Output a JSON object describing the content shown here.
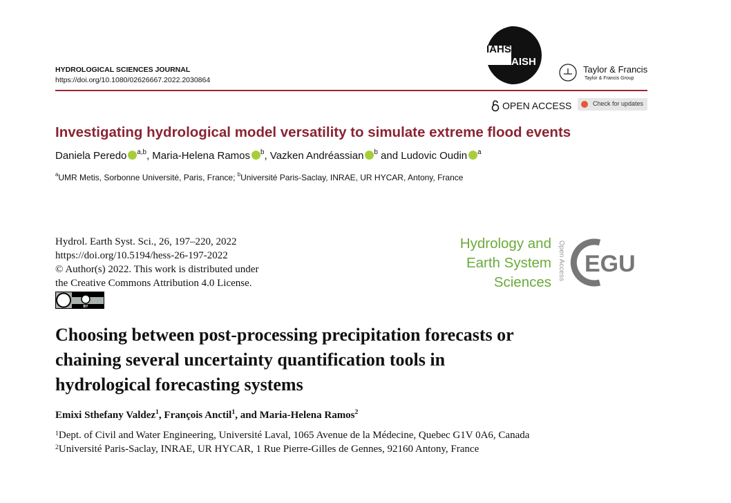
{
  "paper1": {
    "journal": "HYDROLOGICAL SCIENCES JOURNAL",
    "doi": "https://doi.org/10.1080/02626667.2022.2030864",
    "logo_iahs": [
      "IAHS",
      "AISH"
    ],
    "publisher": "Taylor & Francis",
    "publisher_group": "Taylor & Francis Group",
    "open_access": "OPEN ACCESS",
    "check_updates": "Check for updates",
    "title": "Investigating hydrological model versatility to simulate extreme flood events",
    "authors": [
      {
        "text": "Daniela Peredo",
        "sup": "a,b"
      },
      {
        "text": ", Maria-Helena Ramos",
        "sup": "b"
      },
      {
        "text": ", Vazken Andréassian",
        "sup": "b"
      },
      {
        "text": " and Ludovic Oudin",
        "sup": "a"
      }
    ],
    "affiliations": [
      {
        "sup": "a",
        "text": "UMR Metis, Sorbonne Université, Paris, France; "
      },
      {
        "sup": "b",
        "text": "Université Paris-Saclay, INRAE, UR HYCAR, Antony, France"
      }
    ]
  },
  "paper2": {
    "citation": [
      "Hydrol. Earth Syst. Sci., 26, 197–220, 2022",
      "https://doi.org/10.5194/hess-26-197-2022",
      "© Author(s) 2022. This work is distributed under",
      "the Creative Commons Attribution 4.0 License."
    ],
    "license_badge": "BY",
    "journal_name": [
      "Hydrology and",
      "Earth System",
      "Sciences"
    ],
    "open_access": "Open Access",
    "egu": "EGU",
    "title": [
      "Choosing between post-processing precipitation forecasts or",
      "chaining several uncertainty quantification tools in",
      "hydrological forecasting systems"
    ],
    "authors": [
      {
        "text": "Emixi Sthefany Valdez",
        "sup": "1"
      },
      {
        "text": ", François Anctil",
        "sup": "1"
      },
      {
        "text": ", and Maria-Helena Ramos",
        "sup": "2"
      }
    ],
    "affiliations": [
      {
        "sup": "1",
        "text": "Dept. of Civil and Water Engineering, Université Laval, 1065 Avenue de la Médecine, Quebec G1V 0A6, Canada"
      },
      {
        "sup": "2",
        "text": "Université Paris-Saclay, INRAE, UR HYCAR, 1 Rue Pierre-Gilles de Gennes, 92160 Antony, France"
      }
    ]
  }
}
